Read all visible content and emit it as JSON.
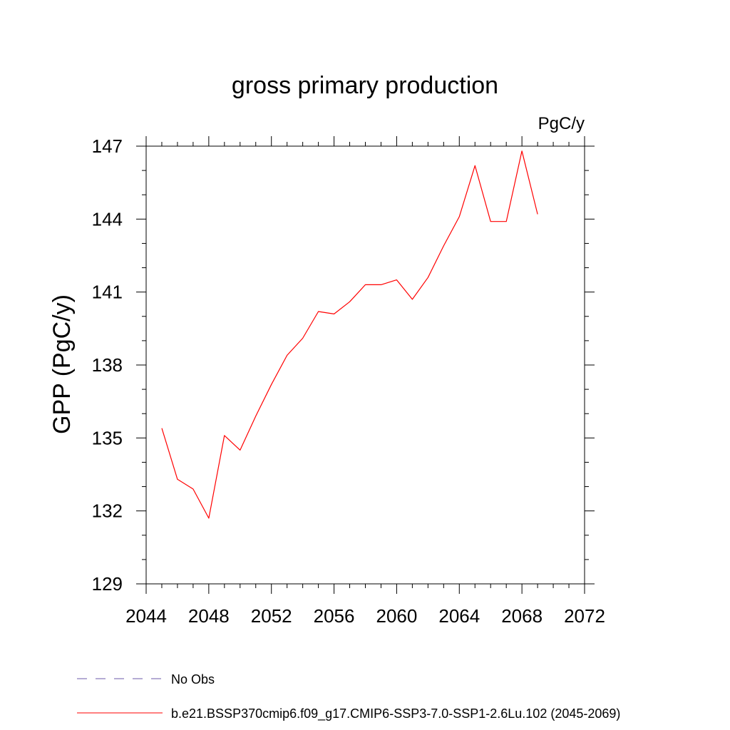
{
  "chart_data": {
    "type": "line",
    "title": "gross primary production",
    "units_label": "PgC/y",
    "ylabel": "GPP  (PgC/y)",
    "xlabel": "",
    "xlim": [
      2044,
      2072
    ],
    "ylim": [
      129,
      147
    ],
    "xticks": [
      2044,
      2048,
      2052,
      2056,
      2060,
      2064,
      2068,
      2072
    ],
    "yticks": [
      129,
      132,
      135,
      138,
      141,
      144,
      147
    ],
    "grid": false,
    "series": [
      {
        "name": "b.e21.BSSP370cmip6.f09_g17.CMIP6-SSP3-7.0-SSP1-2.6Lu.102 (2045-2069)",
        "color": "#ff0000",
        "style": "solid",
        "x": [
          2045,
          2046,
          2047,
          2048,
          2049,
          2050,
          2051,
          2052,
          2053,
          2054,
          2055,
          2056,
          2057,
          2058,
          2059,
          2060,
          2061,
          2062,
          2063,
          2064,
          2065,
          2066,
          2067,
          2068,
          2069
        ],
        "y": [
          135.4,
          133.3,
          132.9,
          131.7,
          135.1,
          134.5,
          135.9,
          137.2,
          138.4,
          139.1,
          140.2,
          140.1,
          140.6,
          141.3,
          141.3,
          141.5,
          140.7,
          141.6,
          142.9,
          144.1,
          146.2,
          143.9,
          143.9,
          146.8,
          144.2
        ]
      }
    ],
    "legend": {
      "placement": "bottom",
      "entries": [
        {
          "label": "No Obs",
          "color": "#6b5aa8",
          "style": "dashed"
        },
        {
          "label": "b.e21.BSSP370cmip6.f09_g17.CMIP6-SSP3-7.0-SSP1-2.6Lu.102 (2045-2069)",
          "color": "#ff0000",
          "style": "solid"
        }
      ]
    }
  }
}
